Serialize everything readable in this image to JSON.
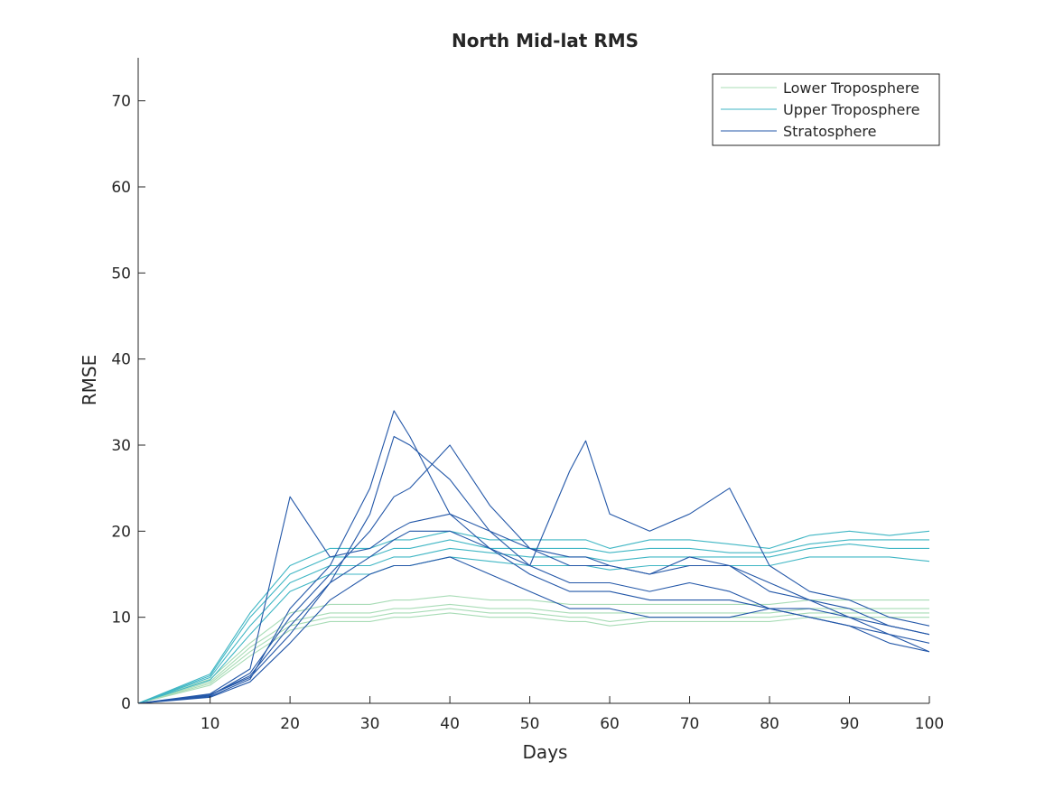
{
  "chart_data": {
    "type": "line",
    "title": "North Mid-lat RMS",
    "xlabel": "Days",
    "ylabel": "RMSE",
    "xlim": [
      1,
      100
    ],
    "ylim": [
      0,
      75
    ],
    "xticks": [
      10,
      20,
      30,
      40,
      50,
      60,
      70,
      80,
      90,
      100
    ],
    "yticks": [
      0,
      10,
      20,
      30,
      40,
      50,
      60,
      70
    ],
    "grid": false,
    "legend_position": "top-right",
    "legend": [
      "Lower Troposphere",
      "Upper Troposphere",
      "Stratosphere"
    ],
    "colors": {
      "Lower Troposphere": "#a8dcb6",
      "Upper Troposphere": "#3fb6c4",
      "Stratosphere": "#2357a8"
    },
    "x": [
      1,
      10,
      15,
      20,
      25,
      30,
      33,
      35,
      40,
      45,
      50,
      55,
      57,
      60,
      65,
      70,
      75,
      80,
      85,
      90,
      95,
      100
    ],
    "series": [
      {
        "name": "Lower Troposphere",
        "values": [
          0,
          2.5,
          6.5,
          9.5,
          10.5,
          10.5,
          11,
          11,
          11.5,
          11,
          11,
          10.5,
          10.5,
          10.5,
          10.5,
          10.5,
          10.5,
          10.5,
          11,
          11,
          11,
          11
        ]
      },
      {
        "name": "Lower Troposphere",
        "values": [
          0,
          2.3,
          6,
          9,
          10,
          10,
          10.5,
          10.5,
          11,
          10.5,
          10.5,
          10,
          10,
          9.5,
          10,
          10,
          10,
          10,
          10.5,
          10.5,
          10.5,
          10.5
        ]
      },
      {
        "name": "Lower Troposphere",
        "values": [
          0,
          2.8,
          7,
          10.5,
          11.5,
          11.5,
          12,
          12,
          12.5,
          12,
          12,
          11.5,
          11.5,
          11.5,
          11.5,
          11.5,
          11.5,
          11.5,
          12,
          12,
          12,
          12
        ]
      },
      {
        "name": "Lower Troposphere",
        "values": [
          0,
          2.1,
          5.5,
          8.5,
          9.5,
          9.5,
          10,
          10,
          10.5,
          10,
          10,
          9.5,
          9.5,
          9,
          9.5,
          9.5,
          9.5,
          9.5,
          10,
          10,
          10,
          10
        ]
      },
      {
        "name": "Upper Troposphere",
        "values": [
          0,
          3,
          9,
          14,
          16,
          16,
          17,
          17,
          18,
          17.5,
          17,
          17,
          17,
          16.5,
          17,
          17,
          17,
          17,
          18,
          18.5,
          18,
          18
        ]
      },
      {
        "name": "Upper Troposphere",
        "values": [
          0,
          3.2,
          10,
          15,
          17,
          17,
          18,
          18,
          19,
          18,
          18,
          18,
          18,
          17.5,
          18,
          18,
          17.5,
          17.5,
          18.5,
          19,
          19,
          19
        ]
      },
      {
        "name": "Upper Troposphere",
        "values": [
          0,
          2.7,
          8,
          13,
          15,
          15,
          16,
          16,
          17,
          16.5,
          16,
          16,
          16,
          15.5,
          16,
          16,
          16,
          16,
          17,
          17,
          17,
          16.5
        ]
      },
      {
        "name": "Upper Troposphere",
        "values": [
          0,
          3.4,
          10.5,
          16,
          18,
          18,
          19,
          19,
          20,
          19,
          19,
          19,
          19,
          18,
          19,
          19,
          18.5,
          18,
          19.5,
          20,
          19.5,
          20
        ]
      },
      {
        "name": "Stratosphere",
        "values": [
          0,
          1,
          3,
          8,
          14,
          22,
          31,
          30,
          26,
          20,
          16,
          14,
          14,
          14,
          13,
          14,
          13,
          11,
          10,
          9,
          8,
          7
        ]
      },
      {
        "name": "Stratosphere",
        "values": [
          0,
          0.8,
          2.8,
          11,
          16,
          25,
          34,
          31,
          22,
          18,
          15,
          13,
          13,
          13,
          12,
          12,
          12,
          11,
          10,
          9,
          7,
          6
        ]
      },
      {
        "name": "Stratosphere",
        "values": [
          0,
          1.1,
          4,
          24,
          17,
          18,
          20,
          21,
          22,
          20,
          18,
          17,
          17,
          16,
          15,
          17,
          16,
          14,
          12,
          10,
          9,
          8
        ]
      },
      {
        "name": "Stratosphere",
        "values": [
          0,
          0.9,
          3.5,
          10,
          15,
          20,
          24,
          25,
          30,
          23,
          18,
          16,
          16,
          16,
          15,
          16,
          16,
          13,
          12,
          11,
          9,
          8
        ]
      },
      {
        "name": "Stratosphere",
        "values": [
          0,
          1,
          3.2,
          9,
          14,
          17,
          19,
          20,
          20,
          18,
          16,
          27,
          30.5,
          22,
          20,
          22,
          25,
          16,
          13,
          12,
          10,
          9
        ]
      },
      {
        "name": "Stratosphere",
        "values": [
          0,
          0.7,
          2.5,
          7,
          12,
          15,
          16,
          16,
          17,
          15,
          13,
          11,
          11,
          11,
          10,
          10,
          10,
          11,
          11,
          10,
          8,
          6
        ]
      }
    ]
  }
}
